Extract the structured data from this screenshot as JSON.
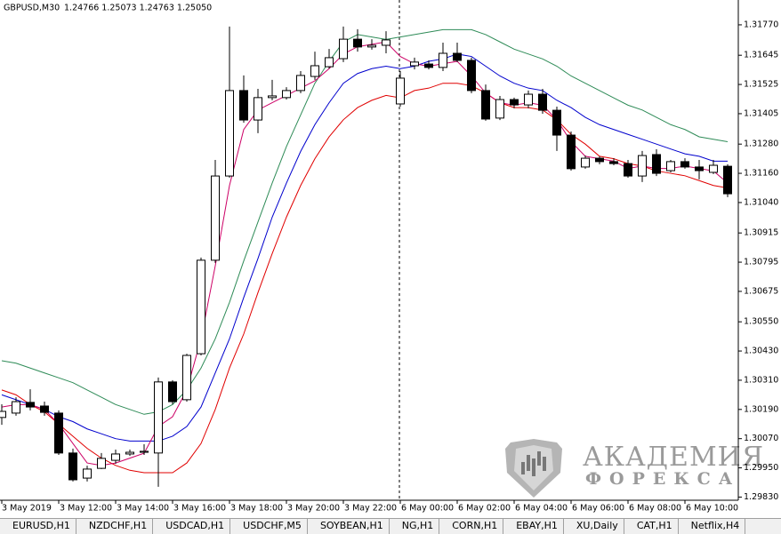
{
  "chart_data": {
    "type": "candlestick",
    "title": "GBPUSD,M30",
    "subtitle": "1.24766 1.25073 1.24763 1.25050",
    "x": [
      "3 May 2019",
      null,
      null,
      null,
      "3 May 12:00",
      null,
      null,
      null,
      "3 May 14:00",
      null,
      null,
      null,
      "3 May 16:00",
      null,
      null,
      null,
      "3 May 18:00",
      null,
      null,
      null,
      "3 May 20:00",
      null,
      null,
      null,
      "3 May 22:00",
      null,
      null,
      null,
      "6 May 00:00",
      null,
      null,
      null,
      "6 May 02:00",
      null,
      null,
      null,
      "6 May 04:00",
      null,
      null,
      null,
      "6 May 06:00",
      null,
      null,
      null,
      "6 May 08:00",
      null,
      null,
      null,
      "6 May 10:00",
      null,
      null,
      null
    ],
    "open": [
      1.30157,
      1.30175,
      1.30219,
      1.30204,
      1.30175,
      1.30011,
      1.29908,
      1.29948,
      1.29981,
      1.30007,
      1.30014,
      1.30011,
      1.30303,
      1.3023,
      1.30419,
      1.30803,
      1.31149,
      1.315,
      1.31379,
      1.31471,
      1.31471,
      1.315,
      1.31558,
      1.31598,
      1.31631,
      1.31711,
      1.31679,
      1.31686,
      1.31445,
      1.31602,
      1.31609,
      1.31595,
      1.31653,
      1.31624,
      1.315,
      1.31387,
      1.31463,
      1.31441,
      1.31485,
      1.31419,
      1.31317,
      1.31186,
      1.31222,
      1.31208,
      1.312,
      1.31149,
      1.31237,
      1.31171,
      1.31208,
      1.31186,
      1.31164,
      1.31189
    ],
    "high": [
      1.30211,
      1.3024,
      1.30273,
      1.30222,
      1.30186,
      1.30029,
      1.29959,
      1.30011,
      1.30025,
      1.30025,
      1.30047,
      1.30321,
      1.3031,
      1.30419,
      1.30814,
      1.31215,
      1.31763,
      1.31562,
      1.31507,
      1.31544,
      1.31514,
      1.3158,
      1.3166,
      1.31671,
      1.31763,
      1.31752,
      1.31711,
      1.31744,
      1.3158,
      1.31635,
      1.31624,
      1.31697,
      1.31697,
      1.31635,
      1.31525,
      1.31478,
      1.31471,
      1.315,
      1.31507,
      1.31434,
      1.31332,
      1.31233,
      1.3123,
      1.31222,
      1.31215,
      1.31252,
      1.31259,
      1.31215,
      1.31222,
      1.31215,
      1.31215,
      1.31197
    ],
    "low": [
      1.30127,
      1.30164,
      1.30186,
      1.30164,
      1.30003,
      1.29894,
      1.29894,
      1.29945,
      1.29967,
      1.29999,
      1.30003,
      1.29872,
      1.30211,
      1.30222,
      1.30412,
      1.30792,
      1.31142,
      1.31368,
      1.31325,
      1.3146,
      1.31463,
      1.31489,
      1.31544,
      1.31591,
      1.31617,
      1.3166,
      1.31668,
      1.31653,
      1.31434,
      1.31587,
      1.31587,
      1.3158,
      1.31617,
      1.31489,
      1.31376,
      1.31379,
      1.31427,
      1.31427,
      1.31405,
      1.31252,
      1.31171,
      1.31179,
      1.31197,
      1.31193,
      1.31142,
      1.31124,
      1.31149,
      1.31164,
      1.31179,
      1.31135,
      1.31157,
      1.31062
    ],
    "close": [
      1.30182,
      1.30222,
      1.302,
      1.30178,
      1.30011,
      1.29901,
      1.29945,
      1.29989,
      1.30007,
      1.30014,
      1.30018,
      1.30303,
      1.30222,
      1.30412,
      1.30803,
      1.31149,
      1.315,
      1.31379,
      1.31471,
      1.31478,
      1.315,
      1.31562,
      1.31602,
      1.31635,
      1.31711,
      1.31679,
      1.31686,
      1.31708,
      1.31551,
      1.31617,
      1.31595,
      1.31653,
      1.31624,
      1.315,
      1.31383,
      1.31463,
      1.31441,
      1.31485,
      1.31419,
      1.31317,
      1.31179,
      1.31222,
      1.31208,
      1.312,
      1.31149,
      1.31233,
      1.3116,
      1.31208,
      1.31186,
      1.31171,
      1.31193,
      1.31076
    ],
    "up_color": "#ffffff",
    "down_color": "#000000",
    "wick_color": "#000000",
    "overlays": [
      {
        "color": "#2e8b57",
        "values": [
          1.3039,
          1.3038,
          1.3036,
          1.3034,
          1.3032,
          1.303,
          1.3027,
          1.3024,
          1.3021,
          1.3019,
          1.3017,
          1.3018,
          1.3021,
          1.3027,
          1.3036,
          1.3048,
          1.3063,
          1.308,
          1.3096,
          1.3112,
          1.3127,
          1.314,
          1.3153,
          1.3162,
          1.317,
          1.3173,
          1.3172,
          1.3171,
          1.3172,
          1.3173,
          1.3174,
          1.3175,
          1.3175,
          1.3175,
          1.3173,
          1.317,
          1.3167,
          1.3165,
          1.3163,
          1.316,
          1.3156,
          1.3153,
          1.315,
          1.3147,
          1.3144,
          1.3142,
          1.3139,
          1.3136,
          1.3134,
          1.3131,
          1.313,
          1.3129
        ]
      },
      {
        "color": "#0000cd",
        "values": [
          1.3025,
          1.3023,
          1.3021,
          1.3019,
          1.3016,
          1.3014,
          1.3011,
          1.3009,
          1.3007,
          1.3006,
          1.3006,
          1.3006,
          1.3008,
          1.3012,
          1.302,
          1.3034,
          1.3048,
          1.3065,
          1.3081,
          1.3098,
          1.3112,
          1.3125,
          1.3136,
          1.3145,
          1.3153,
          1.3157,
          1.3159,
          1.316,
          1.3159,
          1.316,
          1.3162,
          1.3163,
          1.3165,
          1.3164,
          1.316,
          1.3156,
          1.3153,
          1.3151,
          1.315,
          1.3146,
          1.3143,
          1.3139,
          1.3136,
          1.3134,
          1.3132,
          1.313,
          1.3128,
          1.3126,
          1.3124,
          1.3123,
          1.3121,
          1.3121
        ]
      },
      {
        "color": "#e00000",
        "values": [
          1.3027,
          1.3025,
          1.3021,
          1.3018,
          1.3013,
          1.3008,
          1.3003,
          1.2999,
          1.2996,
          1.2994,
          1.2993,
          1.2993,
          1.2993,
          1.2997,
          1.3005,
          1.3019,
          1.3036,
          1.305,
          1.3067,
          1.3083,
          1.3098,
          1.3111,
          1.3122,
          1.3131,
          1.3138,
          1.3143,
          1.3146,
          1.3148,
          1.3147,
          1.315,
          1.3151,
          1.3153,
          1.3153,
          1.3152,
          1.3149,
          1.3145,
          1.3143,
          1.3143,
          1.3142,
          1.3138,
          1.3132,
          1.3128,
          1.3123,
          1.3122,
          1.312,
          1.3119,
          1.3117,
          1.3116,
          1.3115,
          1.3113,
          1.3111,
          1.311
        ]
      },
      {
        "color": "#cc0066",
        "values": [
          1.302,
          1.3021,
          1.3021,
          1.3019,
          1.3013,
          1.3005,
          1.2997,
          1.2996,
          1.2997,
          1.2999,
          1.3001,
          1.3012,
          1.3016,
          1.3027,
          1.3048,
          1.3078,
          1.3111,
          1.3134,
          1.3142,
          1.3145,
          1.3148,
          1.3151,
          1.3154,
          1.3159,
          1.3165,
          1.3168,
          1.3169,
          1.317,
          1.3164,
          1.3161,
          1.316,
          1.3161,
          1.3162,
          1.3156,
          1.3149,
          1.3145,
          1.3144,
          1.3145,
          1.3144,
          1.3138,
          1.3129,
          1.3123,
          1.3122,
          1.3121,
          1.3118,
          1.3119,
          1.3118,
          1.3118,
          1.3119,
          1.3118,
          1.3117,
          1.3112
        ]
      }
    ],
    "ylim": [
      1.29817,
      1.31872
    ],
    "yticks": [
      {
        "value": 1.3177,
        "label": "1.31770"
      },
      1.31645,
      1.31525,
      {
        "value": 1.31405,
        "label": "1.31405"
      },
      {
        "value": 1.3128,
        "label": "1.31280"
      },
      {
        "value": 1.3116,
        "label": "1.31160"
      },
      {
        "value": 1.3104,
        "label": "1.31040"
      },
      1.30915,
      1.30795,
      1.30675,
      {
        "value": 1.3055,
        "label": "1.30550"
      },
      {
        "value": 1.3043,
        "label": "1.30430"
      },
      {
        "value": 1.3031,
        "label": "1.30310"
      },
      {
        "value": 1.3019,
        "label": "1.30190"
      },
      {
        "value": 1.3007,
        "label": "1.30070"
      },
      {
        "value": 1.2995,
        "label": "1.29950"
      },
      {
        "value": 1.2983,
        "label": "1.29830"
      }
    ],
    "grid": false
  },
  "watermark": {
    "line1": "АКАДЕМИЯ",
    "line2": "ФОРЕКСА"
  },
  "tabs": [
    "EURUSD,H1",
    "NZDCHF,H1",
    "USDCAD,H1",
    "USDCHF,M5",
    "SOYBEAN,H1",
    "NG,H1",
    "CORN,H1",
    "EBAY,H1",
    "XU,Daily",
    "CAT,H1",
    "Netflix,H4"
  ]
}
